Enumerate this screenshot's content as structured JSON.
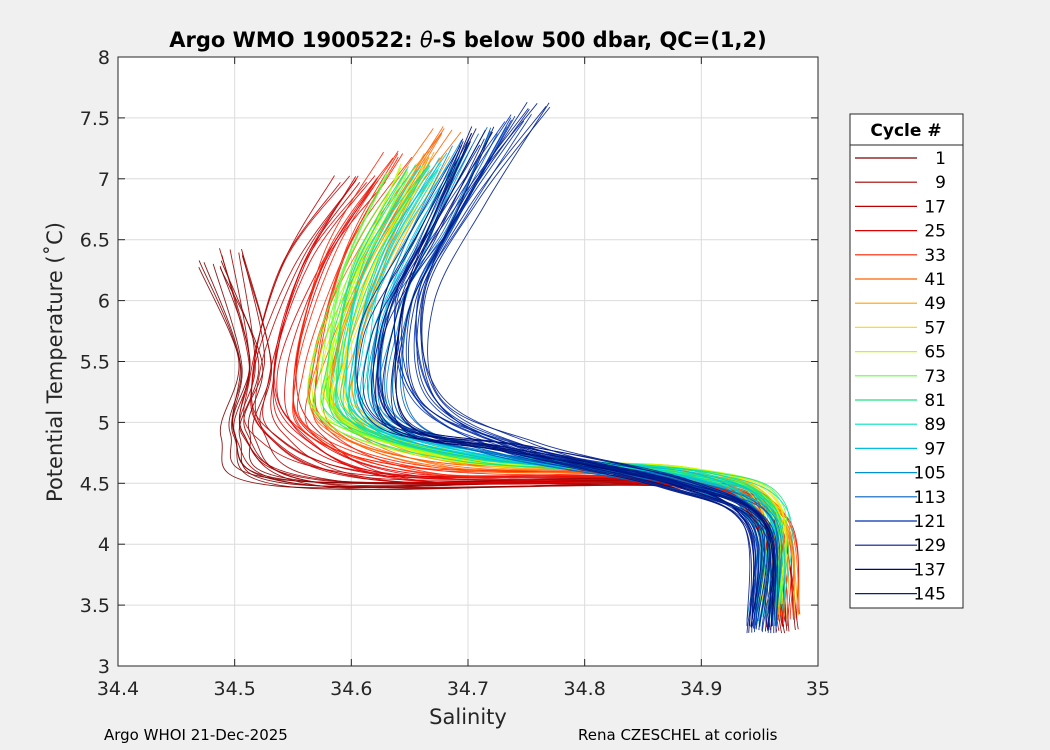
{
  "chart_data": {
    "type": "line",
    "title_parts": [
      "Argo WMO 1900522: ",
      "θ",
      "-S below 500 dbar,  QC=(1,2)"
    ],
    "xlabel": "Salinity",
    "ylabel": "Potential Temperature (˚C)",
    "xlim": [
      34.4,
      35
    ],
    "ylim": [
      3,
      8
    ],
    "xticks": [
      "34.4",
      "34.5",
      "34.6",
      "34.7",
      "34.8",
      "34.9",
      "35"
    ],
    "yticks": [
      "3",
      "3.5",
      "4",
      "4.5",
      "5",
      "5.5",
      "6",
      "6.5",
      "7",
      "7.5",
      "8"
    ],
    "grid": true,
    "legend_title": "Cycle #",
    "legend_position": "right",
    "series": [
      {
        "name": "1",
        "color": "#7f0000",
        "anchors": [
          [
            34.48,
            6.3
          ],
          [
            34.51,
            5.5
          ],
          [
            34.5,
            4.9
          ],
          [
            34.55,
            4.5
          ],
          [
            34.88,
            4.5
          ],
          [
            34.95,
            4.2
          ],
          [
            34.97,
            3.3
          ]
        ]
      },
      {
        "name": "9",
        "color": "#a00000",
        "anchors": [
          [
            34.5,
            6.4
          ],
          [
            34.52,
            5.5
          ],
          [
            34.51,
            4.9
          ],
          [
            34.58,
            4.5
          ],
          [
            34.88,
            4.5
          ],
          [
            34.95,
            4.2
          ],
          [
            34.97,
            3.3
          ]
        ]
      },
      {
        "name": "17",
        "color": "#c00000",
        "anchors": [
          [
            34.6,
            7.0
          ],
          [
            34.55,
            6.3
          ],
          [
            34.52,
            5.4
          ],
          [
            34.53,
            4.9
          ],
          [
            34.62,
            4.55
          ],
          [
            34.88,
            4.5
          ],
          [
            34.95,
            4.2
          ],
          [
            34.97,
            3.35
          ]
        ]
      },
      {
        "name": "25",
        "color": "#e00000",
        "anchors": [
          [
            34.62,
            7.0
          ],
          [
            34.57,
            6.3
          ],
          [
            34.54,
            5.4
          ],
          [
            34.56,
            4.9
          ],
          [
            34.65,
            4.55
          ],
          [
            34.88,
            4.52
          ],
          [
            34.96,
            4.2
          ],
          [
            34.97,
            3.35
          ]
        ]
      },
      {
        "name": "33",
        "color": "#ff2000",
        "anchors": [
          [
            34.64,
            7.2
          ],
          [
            34.59,
            6.4
          ],
          [
            34.56,
            5.4
          ],
          [
            34.57,
            4.9
          ],
          [
            34.67,
            4.6
          ],
          [
            34.88,
            4.55
          ],
          [
            34.96,
            4.2
          ],
          [
            34.97,
            3.4
          ]
        ]
      },
      {
        "name": "41",
        "color": "#ff6000",
        "anchors": [
          [
            34.68,
            7.4
          ],
          [
            34.62,
            6.5
          ],
          [
            34.58,
            5.6
          ],
          [
            34.58,
            5.0
          ],
          [
            34.68,
            4.65
          ],
          [
            34.88,
            4.58
          ],
          [
            34.96,
            4.25
          ],
          [
            34.97,
            3.4
          ]
        ]
      },
      {
        "name": "49",
        "color": "#ffa000",
        "anchors": [
          [
            34.67,
            7.2
          ],
          [
            34.63,
            6.4
          ],
          [
            34.6,
            5.6
          ],
          [
            34.6,
            5.05
          ],
          [
            34.7,
            4.68
          ],
          [
            34.89,
            4.6
          ],
          [
            34.96,
            4.25
          ],
          [
            34.97,
            3.4
          ]
        ]
      },
      {
        "name": "57",
        "color": "#ffe000",
        "anchors": [
          [
            34.66,
            7.0
          ],
          [
            34.62,
            6.3
          ],
          [
            34.59,
            5.5
          ],
          [
            34.6,
            5.05
          ],
          [
            34.7,
            4.7
          ],
          [
            34.89,
            4.6
          ],
          [
            34.96,
            4.3
          ],
          [
            34.96,
            3.5
          ]
        ]
      },
      {
        "name": "65",
        "color": "#c0ff00",
        "anchors": [
          [
            34.65,
            7.1
          ],
          [
            34.61,
            6.3
          ],
          [
            34.58,
            5.5
          ],
          [
            34.59,
            5.0
          ],
          [
            34.7,
            4.7
          ],
          [
            34.89,
            4.6
          ],
          [
            34.96,
            4.3
          ],
          [
            34.96,
            3.5
          ]
        ]
      },
      {
        "name": "73",
        "color": "#60ff40",
        "anchors": [
          [
            34.64,
            7.05
          ],
          [
            34.6,
            6.3
          ],
          [
            34.58,
            5.5
          ],
          [
            34.59,
            5.0
          ],
          [
            34.71,
            4.7
          ],
          [
            34.89,
            4.58
          ],
          [
            34.96,
            4.3
          ],
          [
            34.96,
            3.45
          ]
        ]
      },
      {
        "name": "81",
        "color": "#20e080",
        "anchors": [
          [
            34.66,
            7.1
          ],
          [
            34.61,
            6.3
          ],
          [
            34.59,
            5.5
          ],
          [
            34.6,
            5.0
          ],
          [
            34.71,
            4.7
          ],
          [
            34.89,
            4.58
          ],
          [
            34.96,
            4.3
          ],
          [
            34.96,
            3.45
          ]
        ]
      },
      {
        "name": "89",
        "color": "#00e0c0",
        "anchors": [
          [
            34.67,
            7.1
          ],
          [
            34.62,
            6.3
          ],
          [
            34.6,
            5.5
          ],
          [
            34.61,
            5.0
          ],
          [
            34.72,
            4.72
          ],
          [
            34.89,
            4.57
          ],
          [
            34.96,
            4.25
          ],
          [
            34.96,
            3.4
          ]
        ]
      },
      {
        "name": "97",
        "color": "#00c0e0",
        "anchors": [
          [
            34.69,
            7.2
          ],
          [
            34.64,
            6.4
          ],
          [
            34.61,
            5.6
          ],
          [
            34.62,
            5.0
          ],
          [
            34.72,
            4.72
          ],
          [
            34.89,
            4.55
          ],
          [
            34.95,
            4.2
          ],
          [
            34.96,
            3.4
          ]
        ]
      },
      {
        "name": "105",
        "color": "#0090d0",
        "anchors": [
          [
            34.7,
            7.3
          ],
          [
            34.66,
            6.5
          ],
          [
            34.63,
            5.8
          ],
          [
            34.63,
            5.05
          ],
          [
            34.73,
            4.75
          ],
          [
            34.88,
            4.5
          ],
          [
            34.95,
            4.2
          ],
          [
            34.95,
            3.35
          ]
        ]
      },
      {
        "name": "113",
        "color": "#0060c0",
        "anchors": [
          [
            34.72,
            7.4
          ],
          [
            34.68,
            6.6
          ],
          [
            34.64,
            5.9
          ],
          [
            34.64,
            5.05
          ],
          [
            34.73,
            4.75
          ],
          [
            34.88,
            4.5
          ],
          [
            34.95,
            4.2
          ],
          [
            34.95,
            3.35
          ]
        ]
      },
      {
        "name": "121",
        "color": "#0030b0",
        "anchors": [
          [
            34.74,
            7.5
          ],
          [
            34.69,
            6.7
          ],
          [
            34.65,
            6.0
          ],
          [
            34.66,
            5.2
          ],
          [
            34.74,
            4.78
          ],
          [
            34.88,
            4.5
          ],
          [
            34.95,
            4.15
          ],
          [
            34.95,
            3.3
          ]
        ]
      },
      {
        "name": "129",
        "color": "#001890",
        "anchors": [
          [
            34.7,
            7.3
          ],
          [
            34.66,
            6.5
          ],
          [
            34.62,
            5.7
          ],
          [
            34.63,
            5.0
          ],
          [
            34.74,
            4.78
          ],
          [
            34.88,
            4.5
          ],
          [
            34.95,
            4.15
          ],
          [
            34.95,
            3.3
          ]
        ]
      },
      {
        "name": "137",
        "color": "#000c70",
        "anchors": [
          [
            34.71,
            7.4
          ],
          [
            34.67,
            6.6
          ],
          [
            34.64,
            5.9
          ],
          [
            34.64,
            5.0
          ],
          [
            34.74,
            4.78
          ],
          [
            34.88,
            4.48
          ],
          [
            34.95,
            4.15
          ],
          [
            34.95,
            3.3
          ]
        ]
      },
      {
        "name": "145",
        "color": "#002090",
        "anchors": [
          [
            34.76,
            7.6
          ],
          [
            34.7,
            6.8
          ],
          [
            34.66,
            6.0
          ],
          [
            34.67,
            5.2
          ],
          [
            34.75,
            4.8
          ],
          [
            34.88,
            4.48
          ],
          [
            34.95,
            4.15
          ],
          [
            34.95,
            3.3
          ]
        ]
      }
    ]
  },
  "footer": {
    "left": "Argo WHOI 21-Dec-2025",
    "right": "Rena CZESCHEL at coriolis"
  }
}
